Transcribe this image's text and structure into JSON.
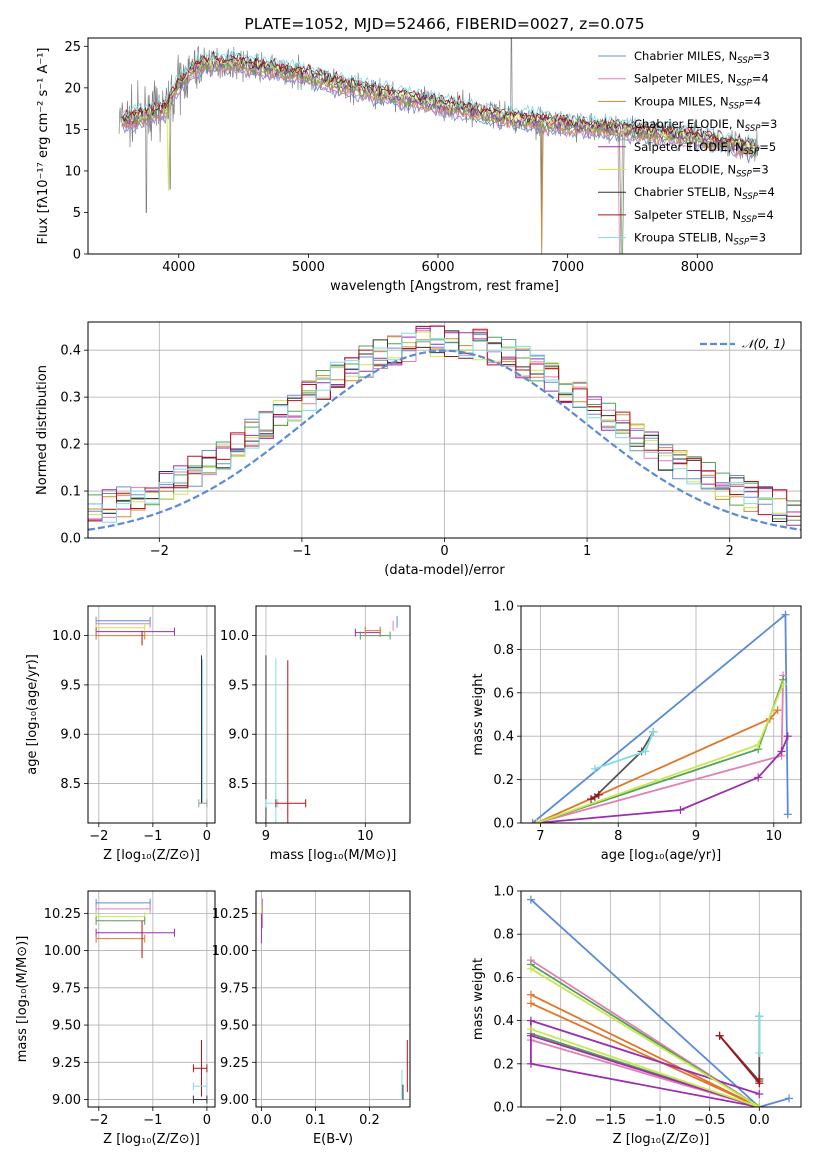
{
  "chart_data": [
    {
      "id": "spectrum",
      "type": "line",
      "title": "PLATE=1052, MJD=52466, FIBERID=0027, z=0.075",
      "xlabel": "wavelength [Angstrom, rest frame]",
      "ylabel": "Flux [fλ10⁻¹⁷ erg cm⁻² s⁻¹ A⁻¹]",
      "xlim": [
        3300,
        8800
      ],
      "ylim": [
        0,
        26
      ],
      "xticks": [
        4000,
        5000,
        6000,
        7000,
        8000
      ],
      "yticks": [
        0,
        5,
        10,
        15,
        20,
        25
      ],
      "grid": false,
      "legend_position": "top-right",
      "continuum": {
        "x": [
          3550,
          3700,
          3900,
          4000,
          4100,
          4200,
          4400,
          4600,
          4800,
          5000,
          5200,
          5500,
          6000,
          6500,
          7000,
          7400,
          8000,
          8500
        ],
        "y": [
          16.0,
          16.5,
          17.5,
          20.5,
          22.0,
          23.0,
          23.0,
          22.5,
          22.0,
          21.5,
          20.5,
          19.5,
          18.0,
          16.5,
          15.5,
          15.0,
          14.0,
          12.5
        ]
      },
      "series": [
        {
          "name": "Chabrier MILES, N_SSP=3",
          "color": "#6a8fd8"
        },
        {
          "name": "Salpeter MILES, N_SSP=4",
          "color": "#e27fb5"
        },
        {
          "name": "Kroupa MILES, N_SSP=4",
          "color": "#c98c3b"
        },
        {
          "name": "Chabrier ELODIE, N_SSP=3",
          "color": "#55a05a"
        },
        {
          "name": "Salpeter ELODIE, N_SSP=5",
          "color": "#9b2fae"
        },
        {
          "name": "Kroupa ELODIE, N_SSP=3",
          "color": "#d6e356"
        },
        {
          "name": "Chabrier STELIB, N_SSP=4",
          "color": "#333333"
        },
        {
          "name": "Salpeter STELIB, N_SSP=4",
          "color": "#b3131b"
        },
        {
          "name": "Kroupa STELIB, N_SSP=3",
          "color": "#7fdde6"
        }
      ],
      "legend_labels": [
        {
          "base": "Chabrier MILES, N",
          "sub": "SSP",
          "tail": "=3"
        },
        {
          "base": "Salpeter MILES, N",
          "sub": "SSP",
          "tail": "=4"
        },
        {
          "base": "Kroupa MILES, N",
          "sub": "SSP",
          "tail": "=4"
        },
        {
          "base": "Chabrier ELODIE, N",
          "sub": "SSP",
          "tail": "=3"
        },
        {
          "base": "Salpeter ELODIE, N",
          "sub": "SSP",
          "tail": "=5"
        },
        {
          "base": "Kroupa ELODIE, N",
          "sub": "SSP",
          "tail": "=3"
        },
        {
          "base": "Chabrier STELIB, N",
          "sub": "SSP",
          "tail": "=4"
        },
        {
          "base": "Salpeter STELIB, N",
          "sub": "SSP",
          "tail": "=4"
        },
        {
          "base": "Kroupa STELIB, N",
          "sub": "SSP",
          "tail": "=3"
        }
      ]
    },
    {
      "id": "residuals",
      "type": "line",
      "xlabel": "(data-model)/error",
      "ylabel": "Normed distribution",
      "xlim": [
        -2.5,
        2.5
      ],
      "ylim": [
        0,
        0.46
      ],
      "xticks": [
        -2,
        -1,
        0,
        1,
        2
      ],
      "yticks": [
        0.0,
        0.1,
        0.2,
        0.3,
        0.4
      ],
      "grid": true,
      "legend_position": "top-right",
      "reference_curve": {
        "name": "𝒩(0, 1)",
        "color": "#5b8bd6",
        "style": "dashed",
        "mean": 0,
        "sigma": 1
      },
      "histogram_bin_width": 0.1
    },
    {
      "id": "age_vs_Z",
      "type": "scatter",
      "xlabel": "Z [log₁₀(Z/Z⊙)]",
      "ylabel": "age  [log₁₀(age/yr)]",
      "xlim": [
        -2.2,
        0.15
      ],
      "ylim": [
        8.1,
        10.3
      ],
      "xticks": [
        -2,
        -1,
        0
      ],
      "yticks": [
        8.5,
        9.0,
        9.5,
        10.0
      ],
      "grid": true
    },
    {
      "id": "age_vs_mass",
      "type": "scatter",
      "xlabel": "mass [log₁₀(M/M⊙)]",
      "xlim": [
        8.9,
        10.45
      ],
      "ylim": [
        8.1,
        10.3
      ],
      "xticks": [
        9,
        10
      ],
      "yticks": [
        8.5,
        9.0,
        9.5,
        10.0
      ],
      "grid": true
    },
    {
      "id": "mass_weight_vs_age",
      "type": "line",
      "xlabel": "age  [log₁₀(age/yr)]",
      "ylabel": "mass weight",
      "xlim": [
        6.75,
        10.35
      ],
      "ylim": [
        0,
        1.0
      ],
      "xticks": [
        7,
        8,
        9,
        10
      ],
      "yticks": [
        0.0,
        0.2,
        0.4,
        0.6,
        0.8,
        1.0
      ],
      "grid": true,
      "series": [
        {
          "name": "Chabrier MILES",
          "color": "#5b8bd6",
          "x": [
            6.9,
            10.15,
            10.18
          ],
          "y": [
            0.0,
            0.96,
            0.04
          ]
        },
        {
          "name": "Salpeter MILES",
          "color": "#e27fb5",
          "x": [
            6.95,
            10.1,
            10.12
          ],
          "y": [
            0.0,
            0.31,
            0.68
          ]
        },
        {
          "name": "Kroupa MILES",
          "color": "#e0762a",
          "x": [
            6.95,
            9.95,
            10.05
          ],
          "y": [
            0.0,
            0.48,
            0.52
          ]
        },
        {
          "name": "Chabrier ELODIE",
          "color": "#55a05a",
          "x": [
            6.95,
            9.8,
            10.12
          ],
          "y": [
            0.0,
            0.34,
            0.66
          ]
        },
        {
          "name": "Salpeter ELODIE",
          "color": "#9b2fae",
          "x": [
            6.95,
            8.8,
            9.8,
            10.1,
            10.18
          ],
          "y": [
            0.0,
            0.06,
            0.21,
            0.33,
            0.4
          ]
        },
        {
          "name": "Kroupa ELODIE",
          "color": "#c7e94f",
          "x": [
            6.95,
            9.8,
            10.12
          ],
          "y": [
            0.0,
            0.36,
            0.64
          ]
        },
        {
          "name": "Chabrier STELIB",
          "color": "#555555",
          "x": [
            7.7,
            8.3,
            8.45
          ],
          "y": [
            0.12,
            0.33,
            0.42
          ]
        },
        {
          "name": "Salpeter STELIB",
          "color": "#a01218",
          "x": [
            7.65,
            7.75
          ],
          "y": [
            0.11,
            0.13
          ]
        },
        {
          "name": "Kroupa STELIB",
          "color": "#7fdde6",
          "x": [
            7.7,
            8.35,
            8.45
          ],
          "y": [
            0.25,
            0.33,
            0.42
          ]
        }
      ]
    },
    {
      "id": "mass_vs_Z",
      "type": "scatter",
      "xlabel": "Z [log₁₀(Z/Z⊙)]",
      "ylabel": "mass [log₁₀(M/M⊙)]",
      "xlim": [
        -2.2,
        0.15
      ],
      "ylim": [
        8.95,
        10.4
      ],
      "xticks": [
        -2,
        -1,
        0
      ],
      "yticks": [
        9.0,
        9.25,
        9.5,
        9.75,
        10.0,
        10.25
      ],
      "grid": true
    },
    {
      "id": "mass_vs_ebv",
      "type": "scatter",
      "xlabel": "E(B-V)",
      "xlim": [
        -0.01,
        0.275
      ],
      "ylim": [
        8.95,
        10.4
      ],
      "xticks": [
        0.0,
        0.1,
        0.2
      ],
      "yticks": [
        9.0,
        9.25,
        9.5,
        9.75,
        10.0,
        10.25
      ],
      "grid": true
    },
    {
      "id": "mass_weight_vs_Z",
      "type": "line",
      "xlabel": "Z [log₁₀(Z/Z⊙)]",
      "ylabel": "mass weight",
      "xlim": [
        -2.4,
        0.42
      ],
      "ylim": [
        0,
        1.0
      ],
      "xticks": [
        -2.0,
        -1.5,
        -1.0,
        -0.5,
        0.0
      ],
      "yticks": [
        0.0,
        0.2,
        0.4,
        0.6,
        0.8,
        1.0
      ],
      "grid": true,
      "series": [
        {
          "name": "Chabrier MILES",
          "color": "#5b8bd6",
          "x": [
            -2.3,
            0.0,
            0.3
          ],
          "y": [
            0.96,
            0.0,
            0.04
          ]
        },
        {
          "name": "Salpeter MILES",
          "color": "#e27fb5",
          "x": [
            -2.3,
            0.0,
            -2.3
          ],
          "y": [
            0.31,
            0.0,
            0.68
          ]
        },
        {
          "name": "Kroupa MILES",
          "color": "#e0762a",
          "x": [
            -2.3,
            0.0,
            -2.3
          ],
          "y": [
            0.52,
            0.0,
            0.48
          ]
        },
        {
          "name": "Chabrier ELODIE",
          "color": "#55a05a",
          "x": [
            -2.3,
            0.0,
            -2.3
          ],
          "y": [
            0.34,
            0.0,
            0.66
          ]
        },
        {
          "name": "Salpeter ELODIE",
          "color": "#9b2fae",
          "x": [
            -2.3,
            0.0,
            -2.3,
            -2.3,
            0.0
          ],
          "y": [
            0.33,
            0.0,
            0.2,
            0.4,
            0.06
          ]
        },
        {
          "name": "Kroupa ELODIE",
          "color": "#c7e94f",
          "x": [
            -2.3,
            0.0,
            -2.3
          ],
          "y": [
            0.36,
            0.0,
            0.64
          ]
        },
        {
          "name": "Chabrier STELIB",
          "color": "#555555",
          "x": [
            -0.4,
            0.0,
            0.0
          ],
          "y": [
            0.33,
            0.12,
            0.42
          ]
        },
        {
          "name": "Salpeter STELIB",
          "color": "#a01218",
          "x": [
            -0.4,
            0.0,
            0.0
          ],
          "y": [
            0.33,
            0.11,
            0.13
          ]
        },
        {
          "name": "Kroupa STELIB",
          "color": "#7fdde6",
          "x": [
            0.0,
            0.0
          ],
          "y": [
            0.25,
            0.42
          ]
        }
      ]
    }
  ]
}
